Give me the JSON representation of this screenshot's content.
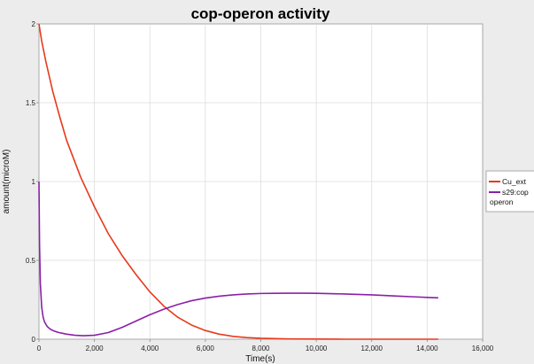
{
  "chart_data": {
    "type": "line",
    "title": "cop-operon activity",
    "xlabel": "Time(s)",
    "ylabel": "amount(microM)",
    "xlim": [
      0,
      16000
    ],
    "ylim": [
      0,
      2
    ],
    "x_ticks": [
      0,
      2000,
      4000,
      6000,
      8000,
      10000,
      12000,
      14000,
      16000
    ],
    "x_tick_labels": [
      "0",
      "2,000",
      "4,000",
      "6,000",
      "8,000",
      "10,000",
      "12,000",
      "14,000",
      "16,000"
    ],
    "y_ticks": [
      0,
      0.5,
      1,
      1.5,
      2
    ],
    "y_tick_labels": [
      "0",
      "0.5",
      "1",
      "1.5",
      "2"
    ],
    "grid": true,
    "legend_position": "right",
    "series": [
      {
        "name": "Cu_ext",
        "color": "#e8391c",
        "x": [
          0,
          100,
          250,
          500,
          750,
          1000,
          1500,
          2000,
          2500,
          3000,
          3500,
          4000,
          4500,
          5000,
          5500,
          6000,
          6500,
          7000,
          7500,
          8000,
          9000,
          10000,
          11000,
          12000,
          13000,
          14400
        ],
        "y": [
          2.0,
          1.89,
          1.76,
          1.57,
          1.41,
          1.26,
          1.03,
          0.84,
          0.67,
          0.53,
          0.41,
          0.3,
          0.21,
          0.14,
          0.09,
          0.055,
          0.032,
          0.018,
          0.01,
          0.006,
          0.002,
          0.001,
          0.0,
          0.0,
          0.0,
          0.0
        ]
      },
      {
        "name": "s29:cop operon",
        "legend_lines": [
          "s29:cop",
          "operon"
        ],
        "color": "#8b1fa8",
        "x": [
          0,
          20,
          50,
          100,
          150,
          200,
          300,
          400,
          500,
          700,
          1000,
          1300,
          1600,
          2000,
          2500,
          3000,
          3500,
          4000,
          4500,
          5000,
          5500,
          6000,
          6500,
          7000,
          7500,
          8000,
          8500,
          9000,
          9500,
          10000,
          10500,
          11000,
          11500,
          12000,
          12500,
          13000,
          13500,
          14000,
          14400
        ],
        "y": [
          1.0,
          0.6,
          0.35,
          0.2,
          0.14,
          0.11,
          0.08,
          0.065,
          0.055,
          0.043,
          0.032,
          0.025,
          0.022,
          0.025,
          0.042,
          0.075,
          0.115,
          0.155,
          0.19,
          0.22,
          0.244,
          0.261,
          0.273,
          0.281,
          0.287,
          0.29,
          0.291,
          0.292,
          0.292,
          0.291,
          0.289,
          0.287,
          0.284,
          0.281,
          0.277,
          0.273,
          0.269,
          0.265,
          0.262
        ]
      }
    ]
  }
}
